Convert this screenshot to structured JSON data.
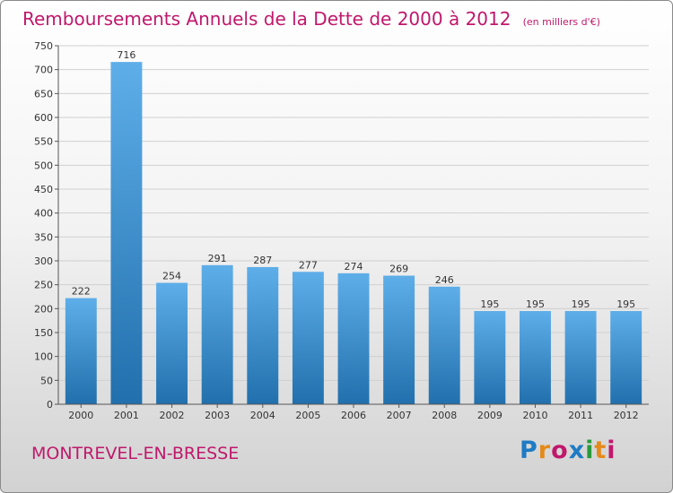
{
  "title": "Remboursements Annuels de la Dette de 2000 à 2012",
  "unit": "(en milliers d'€)",
  "town": "MONTREVEL-EN-BRESSE",
  "logo": {
    "text": "Proxiti",
    "colors": [
      "#1e7bc4",
      "#e58a1a",
      "#c0186b",
      "#1e7bc4",
      "#2a9a3a",
      "#e58a1a",
      "#c0186b"
    ]
  },
  "colors": {
    "title": "#c0186b",
    "bar_light": "#5eaee9",
    "bar_dark": "#2170ad"
  },
  "chart_data": {
    "type": "bar",
    "categories": [
      "2000",
      "2001",
      "2002",
      "2003",
      "2004",
      "2005",
      "2006",
      "2007",
      "2008",
      "2009",
      "2010",
      "2011",
      "2012"
    ],
    "values": [
      222,
      716,
      254,
      291,
      287,
      277,
      274,
      269,
      246,
      195,
      195,
      195,
      195
    ],
    "data_labels": [
      "222",
      "716",
      "254",
      "291",
      "287",
      "277",
      "274",
      "269",
      "246",
      "195",
      "195",
      "195",
      "195"
    ],
    "yticks": [
      0,
      50,
      100,
      150,
      200,
      250,
      300,
      350,
      400,
      450,
      500,
      550,
      600,
      650,
      700,
      750
    ],
    "ylim": [
      0,
      750
    ],
    "grid": true
  }
}
